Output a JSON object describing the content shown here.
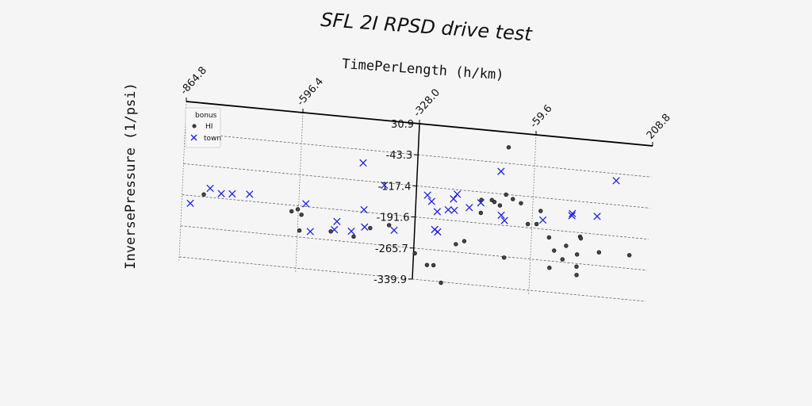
{
  "chart_data": {
    "type": "scatter",
    "title": "SFL 2I RPSD drive test",
    "xlabel": "TimePerLength (h/km)",
    "ylabel": "InversePressure (1/psi)",
    "xlim": [
      -864.8,
      208.8
    ],
    "ylim": [
      -339.9,
      30.9
    ],
    "x_ticks": [
      "-864.8",
      "-596.4",
      "-328.0",
      "-59.6",
      "208.8"
    ],
    "y_ticks": [
      "30.9",
      "-43.3",
      "-117.4",
      "-191.6",
      "-265.7",
      "-339.9"
    ],
    "grid": true,
    "legend": {
      "title": "bonus",
      "placement": "top-left"
    },
    "colors": {
      "HI": "#444444",
      "town": "#2222dd"
    },
    "series": [
      {
        "name": "HI",
        "marker": "circle",
        "points": [
          [
            -815,
            -186
          ],
          [
            -612,
            -206
          ],
          [
            -598,
            -200
          ],
          [
            -589,
            -212
          ],
          [
            -592,
            -250
          ],
          [
            -520,
            -245
          ],
          [
            -467,
            -252
          ],
          [
            -430,
            -228
          ],
          [
            -387,
            -217
          ],
          [
            -325,
            -278
          ],
          [
            -296,
            -303
          ],
          [
            -281,
            -302
          ],
          [
            -262,
            -342
          ],
          [
            -232,
            -247
          ],
          [
            -213,
            -238
          ],
          [
            -178,
            -167
          ],
          [
            -178,
            -136
          ],
          [
            -154,
            -134
          ],
          [
            -148,
            -138
          ],
          [
            -135,
            -145
          ],
          [
            -122,
            -118
          ],
          [
            -121,
            -5
          ],
          [
            -120,
            -268
          ],
          [
            -106,
            -127
          ],
          [
            -87,
            -135
          ],
          [
            -69,
            -183
          ],
          [
            -49,
            -181
          ],
          [
            -41,
            -149
          ],
          [
            -19,
            -210
          ],
          [
            -15,
            -282
          ],
          [
            -6,
            -240
          ],
          [
            14,
            -259
          ],
          [
            21,
            -226
          ],
          [
            47,
            -244
          ],
          [
            47,
            -273
          ],
          [
            48,
            -293
          ],
          [
            52,
            -201
          ],
          [
            54,
            -205
          ],
          [
            97,
            -234
          ],
          [
            167,
            -234
          ]
        ]
      },
      {
        "name": "town",
        "marker": "x",
        "points": [
          [
            -845,
            -210
          ],
          [
            -801,
            -170
          ],
          [
            -775,
            -180
          ],
          [
            -750,
            -178
          ],
          [
            -710,
            -175
          ],
          [
            -580,
            -185
          ],
          [
            -567,
            -250
          ],
          [
            -512,
            -240
          ],
          [
            -507,
            -220
          ],
          [
            -473,
            -240
          ],
          [
            -453,
            -75
          ],
          [
            -446,
            -186
          ],
          [
            -443,
            -227
          ],
          [
            -402,
            -123
          ],
          [
            -375,
            -228
          ],
          [
            -302,
            -137
          ],
          [
            -292,
            -151
          ],
          [
            -278,
            -174
          ],
          [
            -282,
            -217
          ],
          [
            -275,
            -222
          ],
          [
            -253,
            -167
          ],
          [
            -242,
            -140
          ],
          [
            -239,
            -167
          ],
          [
            -234,
            -128
          ],
          [
            -205,
            -157
          ],
          [
            -179,
            -143
          ],
          [
            -136,
            -64
          ],
          [
            -131,
            -168
          ],
          [
            -123,
            -180
          ],
          [
            -35,
            -170
          ],
          [
            31,
            -153
          ],
          [
            32,
            -148
          ],
          [
            89,
            -149
          ],
          [
            129,
            -60
          ]
        ]
      }
    ]
  }
}
